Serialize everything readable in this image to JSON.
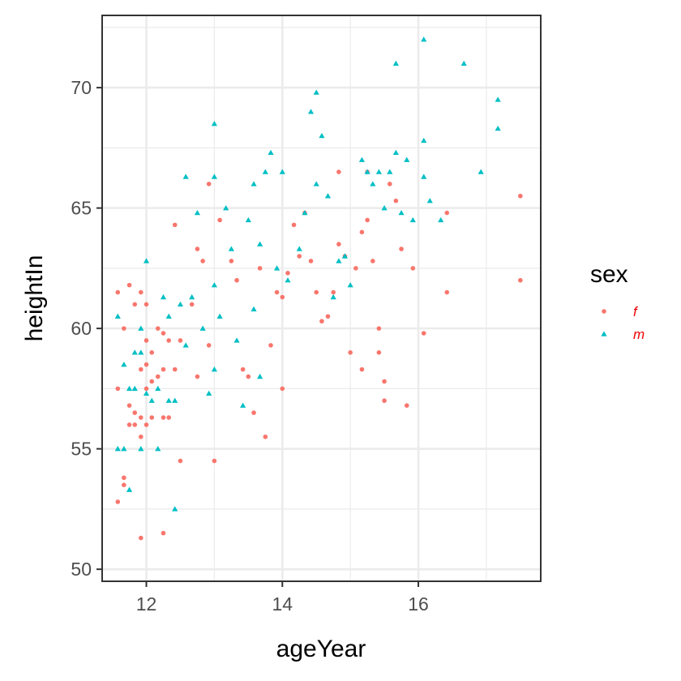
{
  "chart_data": {
    "type": "scatter",
    "title": "",
    "xlabel": "ageYear",
    "ylabel": "heightIn",
    "xlim": [
      11.35,
      17.8
    ],
    "ylim": [
      49.5,
      73.0
    ],
    "x_ticks": [
      12,
      14,
      16
    ],
    "y_ticks": [
      50,
      55,
      60,
      65,
      70
    ],
    "grid": true,
    "legend": {
      "title": "sex",
      "position": "right"
    },
    "series": [
      {
        "name": "f",
        "color": "#F8766D",
        "marker": "circle",
        "points": [
          [
            11.58,
            61.5
          ],
          [
            11.58,
            57.5
          ],
          [
            11.58,
            52.8
          ],
          [
            11.67,
            60.0
          ],
          [
            11.67,
            53.8
          ],
          [
            11.67,
            53.5
          ],
          [
            11.75,
            61.8
          ],
          [
            11.75,
            56.8
          ],
          [
            11.75,
            56.0
          ],
          [
            11.83,
            61.0
          ],
          [
            11.83,
            56.5
          ],
          [
            11.83,
            56.0
          ],
          [
            11.92,
            61.5
          ],
          [
            11.92,
            58.3
          ],
          [
            11.92,
            56.3
          ],
          [
            11.92,
            55.5
          ],
          [
            11.92,
            51.3
          ],
          [
            12.0,
            61.0
          ],
          [
            12.0,
            59.5
          ],
          [
            12.0,
            58.5
          ],
          [
            12.0,
            57.5
          ],
          [
            12.0,
            56.0
          ],
          [
            12.08,
            59.0
          ],
          [
            12.08,
            57.8
          ],
          [
            12.08,
            56.3
          ],
          [
            12.17,
            60.0
          ],
          [
            12.17,
            58.0
          ],
          [
            12.25,
            59.8
          ],
          [
            12.25,
            58.3
          ],
          [
            12.25,
            56.3
          ],
          [
            12.25,
            51.5
          ],
          [
            12.33,
            59.5
          ],
          [
            12.33,
            56.3
          ],
          [
            12.42,
            64.3
          ],
          [
            12.42,
            58.3
          ],
          [
            12.5,
            59.5
          ],
          [
            12.5,
            54.5
          ],
          [
            12.67,
            61.0
          ],
          [
            12.75,
            58.0
          ],
          [
            12.75,
            63.3
          ],
          [
            12.83,
            62.8
          ],
          [
            12.92,
            66.0
          ],
          [
            12.92,
            59.3
          ],
          [
            13.0,
            54.5
          ],
          [
            13.08,
            64.5
          ],
          [
            13.25,
            62.8
          ],
          [
            13.33,
            62.0
          ],
          [
            13.42,
            58.3
          ],
          [
            13.5,
            58.0
          ],
          [
            13.58,
            56.5
          ],
          [
            13.67,
            62.5
          ],
          [
            13.75,
            55.5
          ],
          [
            13.83,
            59.3
          ],
          [
            13.92,
            61.5
          ],
          [
            14.0,
            61.3
          ],
          [
            14.0,
            57.5
          ],
          [
            14.08,
            62.3
          ],
          [
            14.17,
            64.3
          ],
          [
            14.25,
            63.0
          ],
          [
            14.33,
            64.8
          ],
          [
            14.42,
            62.8
          ],
          [
            14.5,
            61.5
          ],
          [
            14.58,
            60.3
          ],
          [
            14.67,
            60.5
          ],
          [
            14.75,
            61.5
          ],
          [
            14.83,
            63.5
          ],
          [
            14.83,
            66.5
          ],
          [
            14.92,
            63.0
          ],
          [
            15.0,
            59.0
          ],
          [
            15.08,
            62.5
          ],
          [
            15.17,
            64.0
          ],
          [
            15.17,
            58.3
          ],
          [
            15.25,
            66.5
          ],
          [
            15.25,
            64.5
          ],
          [
            15.33,
            62.8
          ],
          [
            15.42,
            60.0
          ],
          [
            15.42,
            59.0
          ],
          [
            15.5,
            57.8
          ],
          [
            15.5,
            57.0
          ],
          [
            15.58,
            66.0
          ],
          [
            15.67,
            65.3
          ],
          [
            15.75,
            63.3
          ],
          [
            15.83,
            56.8
          ],
          [
            15.92,
            62.5
          ],
          [
            16.08,
            59.8
          ],
          [
            16.42,
            64.8
          ],
          [
            16.42,
            61.5
          ],
          [
            17.5,
            62.0
          ],
          [
            17.5,
            65.5
          ]
        ]
      },
      {
        "name": "m",
        "color": "#00BFC4",
        "marker": "triangle",
        "points": [
          [
            11.58,
            60.5
          ],
          [
            11.58,
            55.0
          ],
          [
            11.67,
            58.5
          ],
          [
            11.67,
            55.0
          ],
          [
            11.75,
            57.5
          ],
          [
            11.75,
            53.3
          ],
          [
            11.83,
            59.0
          ],
          [
            11.83,
            57.5
          ],
          [
            11.92,
            60.0
          ],
          [
            11.92,
            59.0
          ],
          [
            11.92,
            55.0
          ],
          [
            12.0,
            62.8
          ],
          [
            12.0,
            57.3
          ],
          [
            12.08,
            57.0
          ],
          [
            12.17,
            57.5
          ],
          [
            12.17,
            55.0
          ],
          [
            12.25,
            61.3
          ],
          [
            12.33,
            60.5
          ],
          [
            12.33,
            57.0
          ],
          [
            12.42,
            57.0
          ],
          [
            12.42,
            52.5
          ],
          [
            12.5,
            61.0
          ],
          [
            12.58,
            66.3
          ],
          [
            12.58,
            59.3
          ],
          [
            12.67,
            61.3
          ],
          [
            12.75,
            64.8
          ],
          [
            12.83,
            60.0
          ],
          [
            12.92,
            57.3
          ],
          [
            13.0,
            68.5
          ],
          [
            13.0,
            66.3
          ],
          [
            13.0,
            61.8
          ],
          [
            13.0,
            58.3
          ],
          [
            13.08,
            60.5
          ],
          [
            13.17,
            65.0
          ],
          [
            13.25,
            63.3
          ],
          [
            13.33,
            59.5
          ],
          [
            13.42,
            56.8
          ],
          [
            13.5,
            64.5
          ],
          [
            13.58,
            66.0
          ],
          [
            13.58,
            60.8
          ],
          [
            13.67,
            63.5
          ],
          [
            13.67,
            58.0
          ],
          [
            13.75,
            66.5
          ],
          [
            13.83,
            67.3
          ],
          [
            13.92,
            62.5
          ],
          [
            14.0,
            66.5
          ],
          [
            14.08,
            62.0
          ],
          [
            14.25,
            63.3
          ],
          [
            14.33,
            64.8
          ],
          [
            14.42,
            69.0
          ],
          [
            14.5,
            69.8
          ],
          [
            14.5,
            66.0
          ],
          [
            14.58,
            68.0
          ],
          [
            14.67,
            65.5
          ],
          [
            14.75,
            61.3
          ],
          [
            14.83,
            62.8
          ],
          [
            14.92,
            63.0
          ],
          [
            15.0,
            61.8
          ],
          [
            15.17,
            67.0
          ],
          [
            15.25,
            66.5
          ],
          [
            15.33,
            66.0
          ],
          [
            15.42,
            66.5
          ],
          [
            15.5,
            65.0
          ],
          [
            15.58,
            66.5
          ],
          [
            15.67,
            71.0
          ],
          [
            15.67,
            67.3
          ],
          [
            15.75,
            64.8
          ],
          [
            15.83,
            67.0
          ],
          [
            15.92,
            64.5
          ],
          [
            16.08,
            72.0
          ],
          [
            16.08,
            67.8
          ],
          [
            16.08,
            66.3
          ],
          [
            16.17,
            65.3
          ],
          [
            16.33,
            64.5
          ],
          [
            16.67,
            71.0
          ],
          [
            16.92,
            66.5
          ],
          [
            17.17,
            69.5
          ],
          [
            17.17,
            68.3
          ]
        ]
      }
    ]
  }
}
